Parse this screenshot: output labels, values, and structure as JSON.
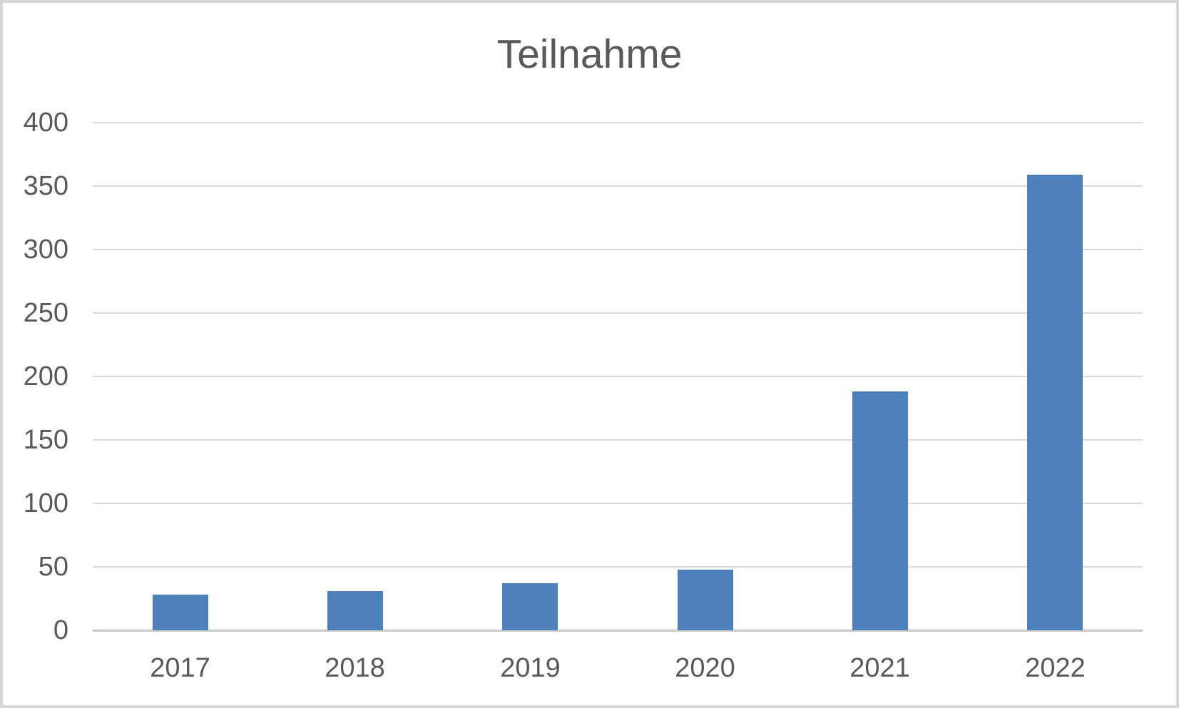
{
  "chart_data": {
    "type": "bar",
    "title": "Teilnahme",
    "categories": [
      "2017",
      "2018",
      "2019",
      "2020",
      "2021",
      "2022"
    ],
    "values": [
      28,
      31,
      37,
      48,
      188,
      359
    ],
    "xlabel": "",
    "ylabel": "",
    "ylim": [
      0,
      400
    ],
    "ytick_step": 50,
    "ytick_labels": [
      "0",
      "50",
      "100",
      "150",
      "200",
      "250",
      "300",
      "350",
      "400"
    ],
    "grid": "horizontal",
    "legend": "none",
    "colors": {
      "bar": "#4e81bc",
      "text": "#595959",
      "gridline": "#d9d9d9",
      "axis_line": "#c9c9c9",
      "frame_border": "#d6d6d6",
      "background": "#ffffff"
    }
  }
}
